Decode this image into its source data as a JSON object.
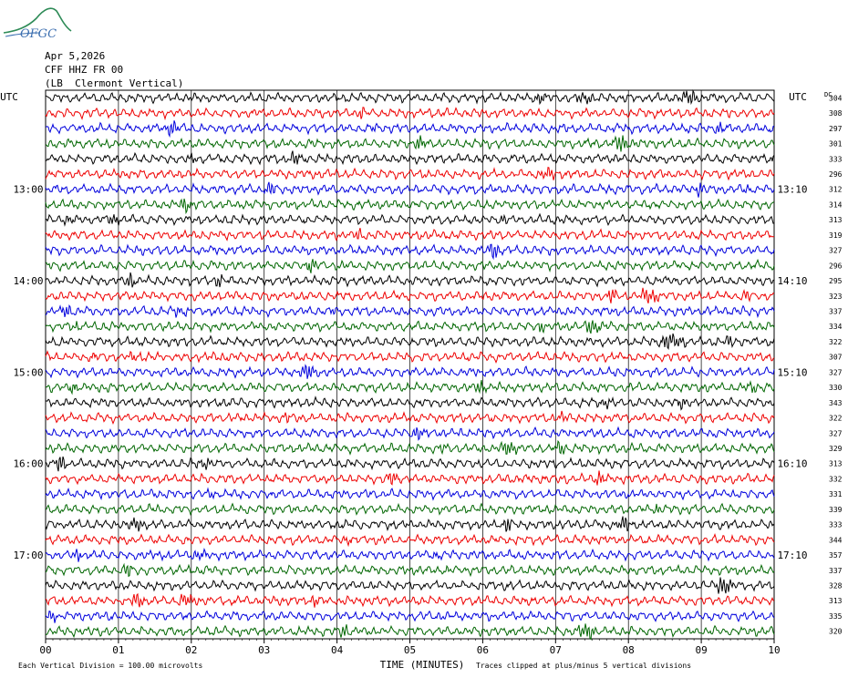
{
  "logo_text": "OFGC",
  "header": {
    "date": "Apr 5,2026",
    "station": "CFF HHZ FR 00",
    "location": "(LB  Clermont Vertical)"
  },
  "left_axis_title": "UTC",
  "right_axis_title": "UTC",
  "dc_title": "DC",
  "footer": {
    "left": "Each Vertical Division =  100.00 microvolts",
    "center": "TIME (MINUTES)",
    "right": "Traces clipped at plus/minus 5 vertical divisions"
  },
  "colors": {
    "black": "#000000",
    "red": "#ee0000",
    "blue": "#0000dd",
    "green": "#006600",
    "grid": "#000000"
  },
  "chart_data": {
    "type": "line",
    "title": "CFF HHZ FR 00",
    "xlabel": "TIME (MINUTES)",
    "ylabel": "UTC",
    "x_ticks": [
      "00",
      "01",
      "02",
      "03",
      "04",
      "05",
      "06",
      "07",
      "08",
      "09",
      "10"
    ],
    "xlim": [
      0,
      10
    ],
    "trace_colors": [
      "black",
      "red",
      "blue",
      "green"
    ],
    "left_hour_labels": [
      {
        "row": 6,
        "text": "13:00"
      },
      {
        "row": 12,
        "text": "14:00"
      },
      {
        "row": 18,
        "text": "15:00"
      },
      {
        "row": 24,
        "text": "16:00"
      },
      {
        "row": 30,
        "text": "17:00"
      }
    ],
    "right_hour_labels": [
      {
        "row": 6,
        "text": "13:10"
      },
      {
        "row": 12,
        "text": "14:10"
      },
      {
        "row": 18,
        "text": "15:10"
      },
      {
        "row": 24,
        "text": "16:10"
      },
      {
        "row": 30,
        "text": "17:10"
      }
    ],
    "dc_offsets": [
      "304",
      "308",
      "297",
      "301",
      "333",
      "296",
      "312",
      "314",
      "313",
      "319",
      "327",
      "296",
      "295",
      "323",
      "337",
      "334",
      "322",
      "307",
      "327",
      "330",
      "343",
      "322",
      "327",
      "329",
      "313",
      "332",
      "331",
      "339",
      "333",
      "344",
      "357",
      "337",
      "328",
      "313",
      "335",
      "320"
    ]
  }
}
